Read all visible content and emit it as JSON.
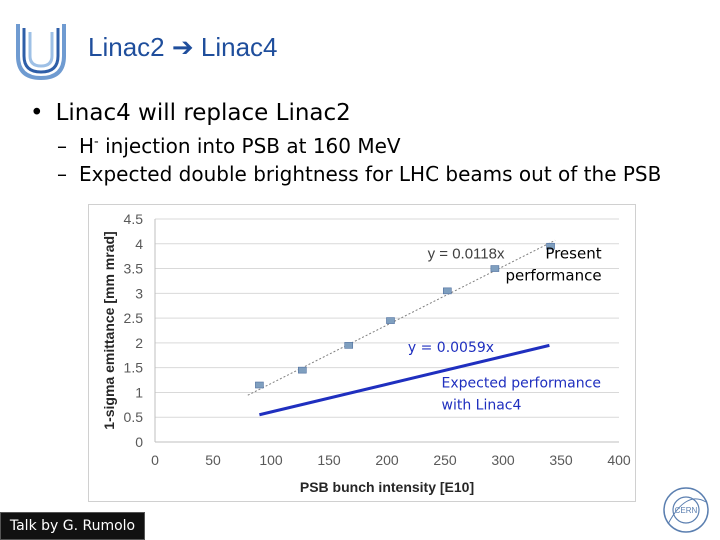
{
  "slide": {
    "title_left": "Linac2",
    "title_arrow": "➔",
    "title_right": "Linac4",
    "bullet_mark": "•",
    "bullet": "Linac4 will replace Linac2",
    "dash": "–",
    "sub1_pre": "H",
    "sub1_sup": "-",
    "sub1_post": " injection into PSB at 160 MeV",
    "sub2": "Expected double brightness for LHC beams out of the PSB",
    "footer": "Talk by G. Rumolo",
    "logo_icon": "u-logo-icon",
    "cern_icon": "cern-logo-icon"
  },
  "chart_data": {
    "type": "scatter",
    "xlabel": "PSB bunch intensity [E10]",
    "ylabel": "1-sigma emittance [mm mrad]",
    "xlim": [
      0,
      400
    ],
    "ylim": [
      0,
      4.5
    ],
    "xticks": [
      0,
      50,
      100,
      150,
      200,
      250,
      300,
      350,
      400
    ],
    "yticks": [
      0,
      0.5,
      1,
      1.5,
      2,
      2.5,
      3,
      3.5,
      4,
      4.5
    ],
    "grid": true,
    "series": [
      {
        "x": [
          90,
          127,
          167,
          203,
          252,
          293,
          341
        ],
        "y": [
          1.15,
          1.45,
          1.95,
          2.45,
          3.05,
          3.5,
          3.95
        ],
        "color": "#7f9fbf",
        "marker": "square",
        "fit_slope": 0.0118,
        "fit_label": "y = 0.0118x",
        "fit_range": [
          80,
          345
        ],
        "label": "Present performance"
      },
      {
        "line_from": [
          90,
          0.55
        ],
        "line_to": [
          340,
          1.95
        ],
        "color": "#1f2fbf",
        "fit_label": "y = 0.0059x",
        "label": "Expected performance with Linac4"
      }
    ]
  }
}
